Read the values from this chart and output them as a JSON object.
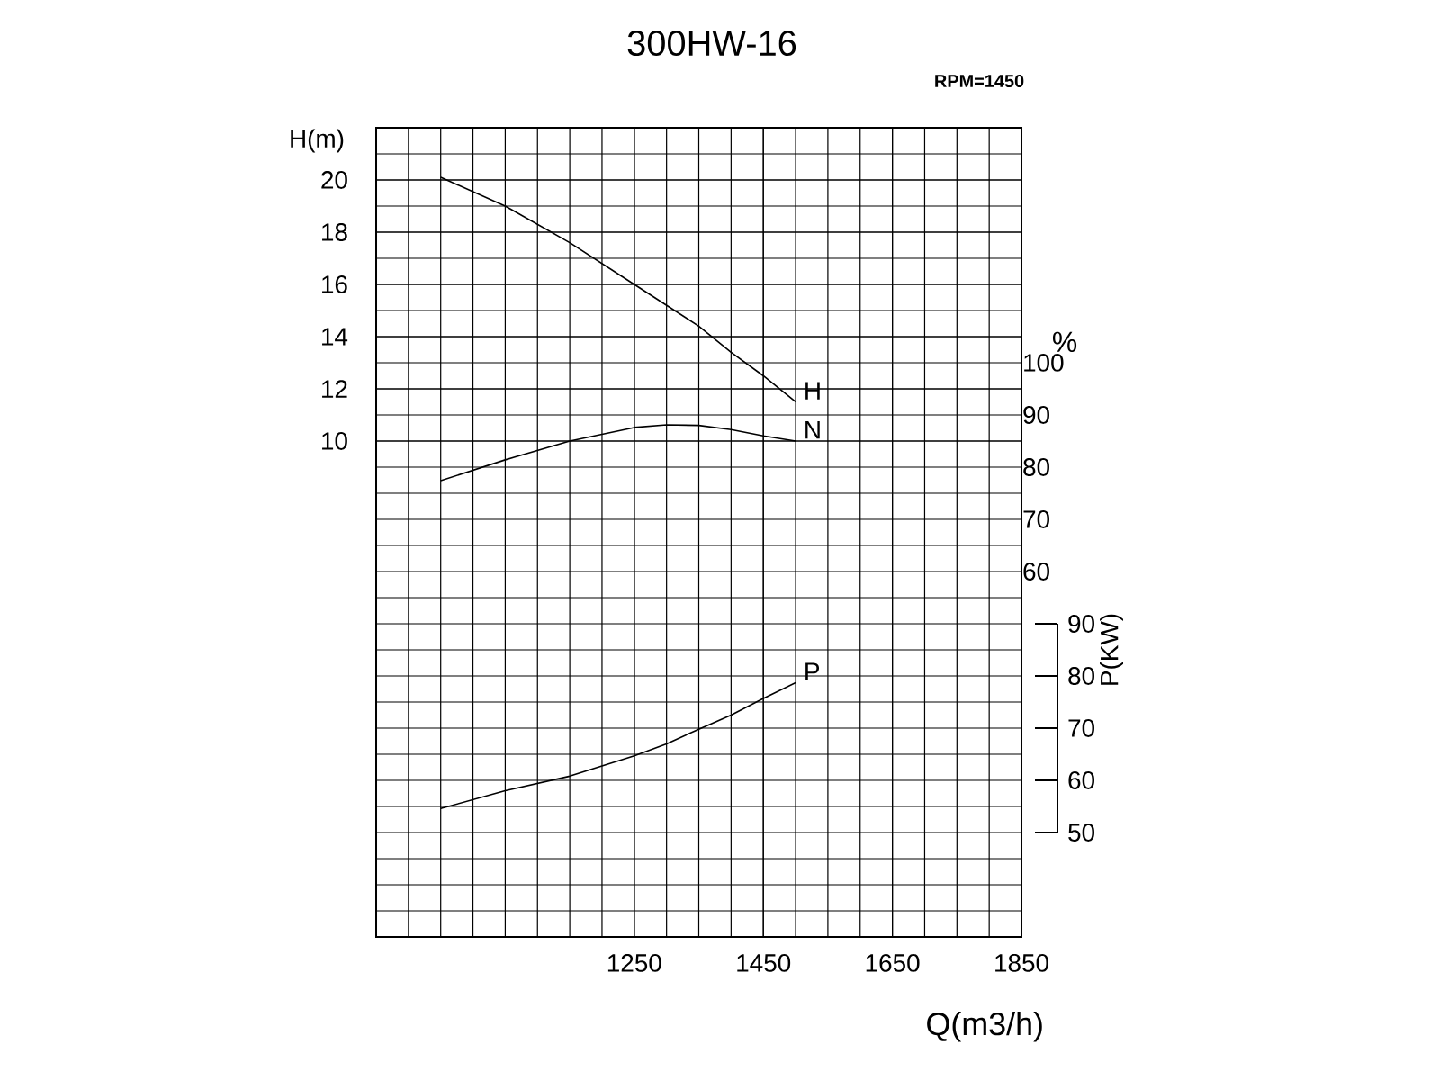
{
  "chart_data": {
    "type": "line",
    "title": "300HW-16",
    "subtitle": "RPM=1450",
    "xlabel": "Q(m3/h)",
    "ylabel": "H(m)",
    "y2label": "%",
    "y3label": "P(KW)",
    "x": [
      950,
      1050,
      1150,
      1250,
      1300,
      1350,
      1400,
      1450,
      1500
    ],
    "series": [
      {
        "name": "H",
        "color": "#000000",
        "axis": "y",
        "values": [
          20.1,
          19.0,
          17.6,
          16.0,
          15.2,
          14.4,
          13.4,
          12.5,
          11.5
        ]
      },
      {
        "name": "N",
        "color": "#000000",
        "axis": "y2",
        "values": [
          77.4,
          81.4,
          85.0,
          87.6,
          88.1,
          88.0,
          87.2,
          86.0,
          85.0
        ]
      },
      {
        "name": "P",
        "color": "#000000",
        "axis": "y3",
        "values": [
          54.6,
          58.0,
          60.8,
          64.7,
          67.0,
          69.8,
          72.5,
          75.7,
          78.7
        ]
      }
    ],
    "xlim": [
      850,
      1850
    ],
    "xticks": [
      1250,
      1450,
      1650,
      1850
    ],
    "ylim": [
      -9,
      22
    ],
    "yticks": [
      10,
      12,
      14,
      16,
      18,
      20
    ],
    "y2lim": [
      -10,
      145
    ],
    "y2ticks": [
      60,
      70,
      80,
      90,
      100
    ],
    "y3lim": [
      30,
      185
    ],
    "y3ticks": [
      50,
      60,
      70,
      80,
      90
    ],
    "grid": true
  }
}
